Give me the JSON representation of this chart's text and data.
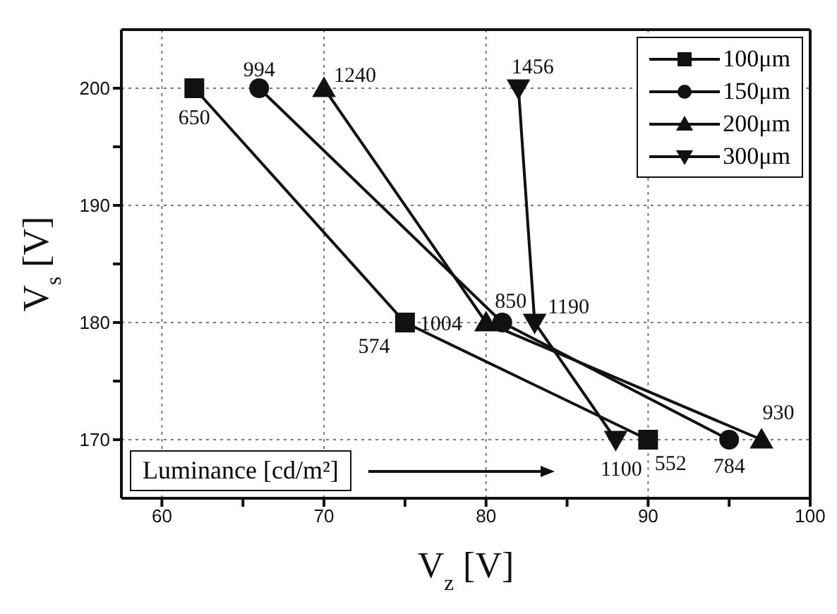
{
  "chart_data": {
    "type": "line",
    "xlabel": "V$_{z}$ [V]",
    "ylabel": "V$_{s}$ [V]",
    "xlim": [
      57.5,
      100
    ],
    "ylim": [
      165,
      205
    ],
    "xticks": [
      60,
      {
        "value": 65,
        "label": null
      },
      70,
      {
        "value": 75,
        "label": null
      },
      80,
      {
        "value": 85,
        "label": null
      },
      90,
      {
        "value": 95,
        "label": null
      },
      100
    ],
    "yticks": [
      170,
      {
        "value": 175,
        "label": null
      },
      180,
      {
        "value": 185,
        "label": null
      },
      190,
      {
        "value": 195,
        "label": null
      },
      200
    ],
    "grid": true,
    "legend": "top right",
    "line_style": "solid",
    "series": [
      {
        "name": "100μm",
        "color": "#111111",
        "marker": "square",
        "x": [
          62,
          75,
          90
        ],
        "values": [
          200,
          180,
          170
        ]
      },
      {
        "name": "150μm",
        "color": "#111111",
        "marker": "circle",
        "x": [
          66,
          81,
          95
        ],
        "values": [
          200,
          180,
          170
        ]
      },
      {
        "name": "200μm",
        "color": "#111111",
        "marker": "triangle",
        "x": [
          70,
          80,
          97
        ],
        "values": [
          200,
          180,
          170
        ]
      },
      {
        "name": "300μm",
        "color": "#111111",
        "marker": "triangle-down",
        "x": [
          82,
          83,
          88
        ],
        "values": [
          200,
          180,
          170
        ]
      }
    ],
    "annotations": [
      {
        "text": "650",
        "x": 62,
        "y": 200
      },
      {
        "text": "574",
        "x": 75,
        "y": 180
      },
      {
        "text": "552",
        "x": 90,
        "y": 170
      },
      {
        "text": "994",
        "x": 66,
        "y": 200
      },
      {
        "text": "850",
        "x": 81,
        "y": 180
      },
      {
        "text": "784",
        "x": 95,
        "y": 170
      },
      {
        "text": "1240",
        "x": 70,
        "y": 200
      },
      {
        "text": "1004",
        "x": 80,
        "y": 180
      },
      {
        "text": "930",
        "x": 97,
        "y": 170
      },
      {
        "text": "1456",
        "x": 82,
        "y": 200
      },
      {
        "text": "1190",
        "x": 83,
        "y": 180
      },
      {
        "text": "1100",
        "x": 88,
        "y": 170
      },
      "Luminance [cd/m²]"
    ]
  }
}
